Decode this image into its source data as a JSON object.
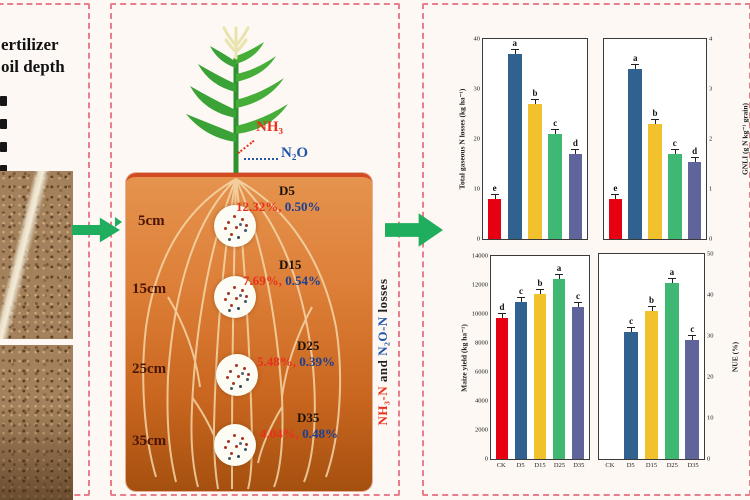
{
  "colors": {
    "bar_series": [
      "#e60012",
      "#31628f",
      "#f2c12e",
      "#3eb873",
      "#5f659b"
    ],
    "dashed_border": "#e77f8e",
    "arrow_green": "#1fae5e",
    "nh3_red": "#e8311a",
    "n2o_blue": "#2255aa",
    "soil_dark": "#4a1505"
  },
  "left_panel": {
    "title_line1": "ertilizer",
    "title_line2": "oil depth",
    "bullet_count": 4
  },
  "diagram": {
    "gas_labels": {
      "nh3": "NH₃",
      "n2o": "N₂O"
    },
    "depths": [
      {
        "depth_label": "5cm",
        "treatment": "D5",
        "nh3_loss": "12.32%,",
        "n2o_loss": "0.50%"
      },
      {
        "depth_label": "15cm",
        "treatment": "D15",
        "nh3_loss": "7.69%,",
        "n2o_loss": "0.54%"
      },
      {
        "depth_label": "25cm",
        "treatment": "D25",
        "nh3_loss": "5.48%,",
        "n2o_loss": "0.39%"
      },
      {
        "depth_label": "35cm",
        "treatment": "D35",
        "nh3_loss": "4.04%,",
        "n2o_loss": "0.48%"
      }
    ],
    "side_caption_parts": [
      {
        "text": "NH₃-N",
        "color": "#e8311a"
      },
      {
        "text": " and ",
        "color": "#222222"
      },
      {
        "text": "N₂O-N",
        "color": "#2255aa"
      },
      {
        "text": " losses",
        "color": "#222222"
      }
    ]
  },
  "chart_data": [
    {
      "type": "bar",
      "position": "top-left",
      "categories": [
        "CK",
        "D5",
        "D15",
        "D25",
        "D35"
      ],
      "values": [
        8,
        37,
        27,
        21,
        17
      ],
      "sig_letters": [
        "e",
        "a",
        "b",
        "c",
        "d"
      ],
      "title": "",
      "xlabel": "",
      "ylabel": "Total gaseous N losses (kg ha⁻¹)",
      "ylim": [
        0,
        40
      ],
      "ytick_step": 10,
      "yaxis_side": "left",
      "show_xlabels": false
    },
    {
      "type": "bar",
      "position": "top-right",
      "categories": [
        "CK",
        "D5",
        "D15",
        "D25",
        "D35"
      ],
      "values": [
        0.8,
        3.4,
        2.3,
        1.7,
        1.55
      ],
      "sig_letters": [
        "e",
        "a",
        "b",
        "c",
        "d"
      ],
      "title": "",
      "xlabel": "",
      "ylabel": "GNLI (g N kg⁻¹ grain)",
      "ylim": [
        0,
        4
      ],
      "ytick_step": 1,
      "yaxis_side": "right",
      "show_xlabels": false
    },
    {
      "type": "bar",
      "position": "bottom-left",
      "categories": [
        "CK",
        "D5",
        "D15",
        "D25",
        "D35"
      ],
      "values": [
        9700,
        10800,
        11400,
        12400,
        10500
      ],
      "sig_letters": [
        "d",
        "c",
        "b",
        "a",
        "c"
      ],
      "title": "",
      "xlabel": "",
      "ylabel": "Maize yield (kg ha⁻¹)",
      "ylim": [
        0,
        14000
      ],
      "ytick_step": 2000,
      "yaxis_side": "left",
      "show_xlabels": true
    },
    {
      "type": "bar",
      "position": "bottom-right",
      "categories": [
        "CK",
        "D5",
        "D15",
        "D25",
        "D35"
      ],
      "values": [
        null,
        31,
        36,
        43,
        29
      ],
      "sig_letters": [
        "",
        "c",
        "b",
        "a",
        "c"
      ],
      "title": "",
      "xlabel": "",
      "ylabel": "NUE (%)",
      "ylim": [
        0,
        50
      ],
      "ytick_step": 10,
      "yaxis_side": "right",
      "show_xlabels": true
    }
  ]
}
